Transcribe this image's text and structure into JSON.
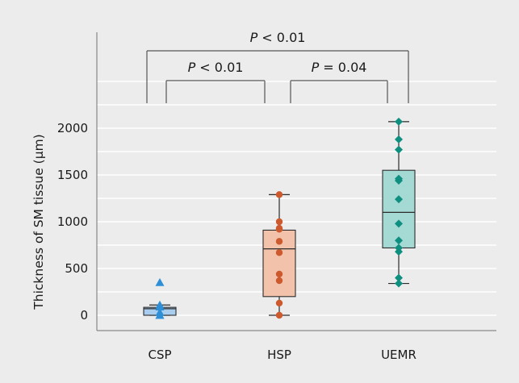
{
  "colors": {
    "background": "#ececec",
    "gridline": "#ffffff",
    "axis": "#888888",
    "bracket": "#555555",
    "csp": "#2e8fd6",
    "csp_box_fill": "#a9cdee",
    "hsp": "#cc5a2e",
    "hsp_box_fill": "#f2c3aa",
    "uemr": "#0f8f80",
    "uemr_box_fill": "#a5d9d3"
  },
  "chart_data": {
    "type": "box",
    "ylabel": "Thickness of SM tissue  (μm)",
    "xlabel": "",
    "ylim": [
      -230,
      2640
    ],
    "yticks": [
      0,
      500,
      1000,
      1500,
      2000
    ],
    "grid": true,
    "categories": [
      "CSP",
      "HSP",
      "UEMR"
    ],
    "groups": [
      {
        "name": "CSP",
        "marker": "triangle",
        "box": {
          "whisker_low": 0,
          "q1": 0,
          "median": 70,
          "q3": 85,
          "whisker_high": 110
        },
        "points": [
          0,
          0,
          30,
          90,
          110,
          350
        ]
      },
      {
        "name": "HSP",
        "marker": "circle",
        "box": {
          "whisker_low": 0,
          "q1": 200,
          "median": 710,
          "q3": 910,
          "whisker_high": 1290
        },
        "points": [
          0,
          130,
          370,
          440,
          670,
          790,
          920,
          930,
          1000,
          1290
        ]
      },
      {
        "name": "UEMR",
        "marker": "diamond",
        "box": {
          "whisker_low": 340,
          "q1": 720,
          "median": 1100,
          "q3": 1550,
          "whisker_high": 2070
        },
        "points": [
          340,
          400,
          680,
          720,
          800,
          980,
          1240,
          1440,
          1460,
          1770,
          1880,
          2070
        ]
      }
    ],
    "annotations": [
      {
        "from": "CSP",
        "to": "UEMR",
        "p_label": "P",
        "p_value": "< 0.01",
        "level": 2
      },
      {
        "from": "CSP",
        "to": "HSP",
        "p_label": "P",
        "p_value": "< 0.01",
        "level": 1
      },
      {
        "from": "HSP",
        "to": "UEMR",
        "p_label": "P",
        "p_value": "= 0.04",
        "level": 1
      }
    ]
  }
}
